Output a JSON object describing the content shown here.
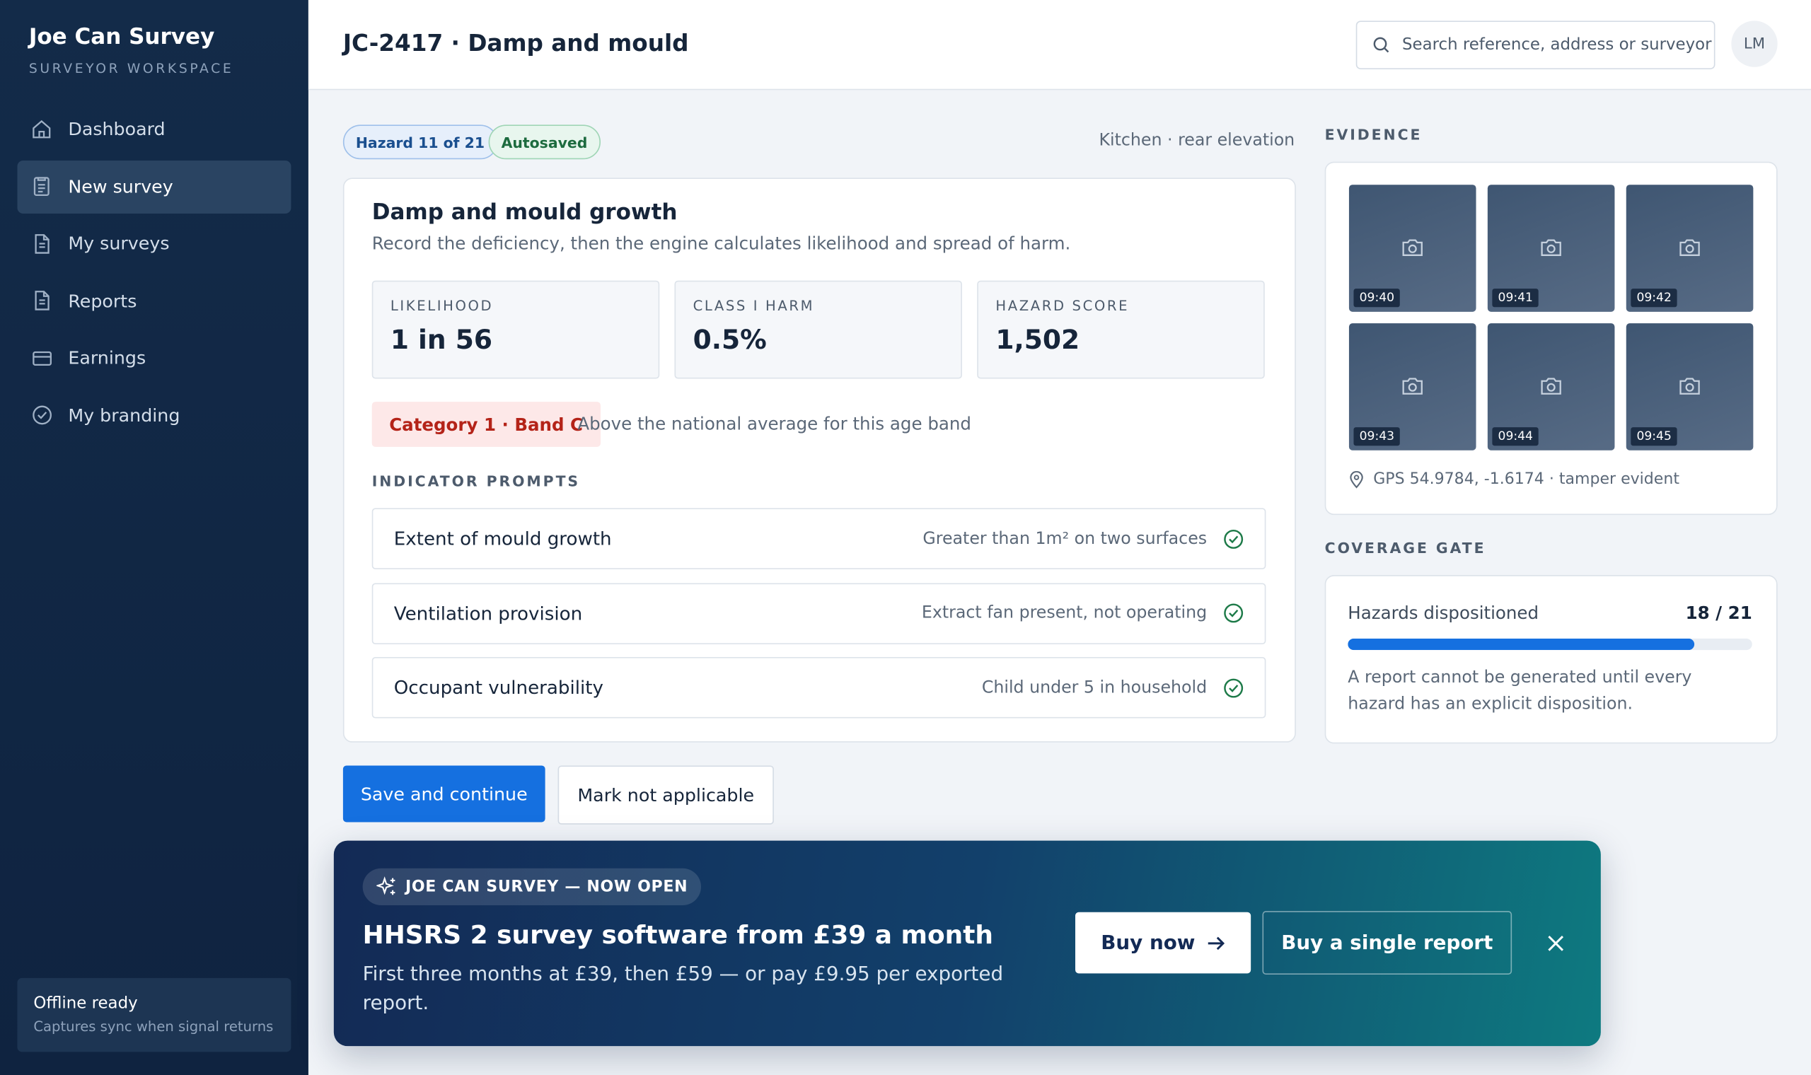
{
  "sidebar": {
    "brand": "Joe Can Survey",
    "subtitle": "SURVEYOR WORKSPACE",
    "nav": [
      {
        "label": "Dashboard"
      },
      {
        "label": "New survey",
        "active": true
      },
      {
        "label": "My surveys"
      },
      {
        "label": "Reports"
      },
      {
        "label": "Earnings"
      },
      {
        "label": "My branding"
      }
    ],
    "status": {
      "title": "Offline ready",
      "text": "Captures sync when signal returns"
    }
  },
  "header": {
    "title": "JC-2417 · Damp and mould",
    "search_placeholder": "Search reference, address or surveyor",
    "avatar": "LM"
  },
  "survey": {
    "pills": [
      "Hazard 11 of 21",
      "Autosaved"
    ],
    "location": "Kitchen · rear elevation",
    "heading": "Damp and mould growth",
    "description": "Record the deficiency, then the engine calculates likelihood and spread of harm.",
    "stats": [
      {
        "label": "LIKELIHOOD",
        "value": "1 in 56"
      },
      {
        "label": "CLASS I HARM",
        "value": "0.5%"
      },
      {
        "label": "HAZARD SCORE",
        "value": "1,502"
      }
    ],
    "band": "Category 1 · Band C",
    "band_note": "Above the national average for this age band",
    "prompts_title": "INDICATOR PROMPTS",
    "prompts": [
      {
        "label": "Extent of mould growth",
        "value": "Greater than 1m² on two surfaces"
      },
      {
        "label": "Ventilation provision",
        "value": "Extract fan present, not operating"
      },
      {
        "label": "Occupant vulnerability",
        "value": "Child under 5 in household"
      }
    ],
    "buttons": [
      "Save and continue",
      "Mark not applicable"
    ]
  },
  "evidence": {
    "title": "EVIDENCE",
    "photos": [
      "09:40",
      "09:41",
      "09:42",
      "09:43",
      "09:44",
      "09:45"
    ],
    "gps": "GPS 54.9784, -1.6174 · tamper evident"
  },
  "coverage": {
    "title": "COVERAGE GATE",
    "label": "Hazards dispositioned",
    "progress": "18 / 21",
    "note": "A report cannot be generated until every hazard has an explicit disposition."
  },
  "banner": {
    "tag": "JOE CAN SURVEY — NOW OPEN",
    "headline": "HHSRS 2 survey software from £39 a month",
    "text": "First three months at £39, then £59 — or pay £9.95 per exported report.",
    "primary": "Buy now",
    "secondary": "Buy a single report"
  }
}
